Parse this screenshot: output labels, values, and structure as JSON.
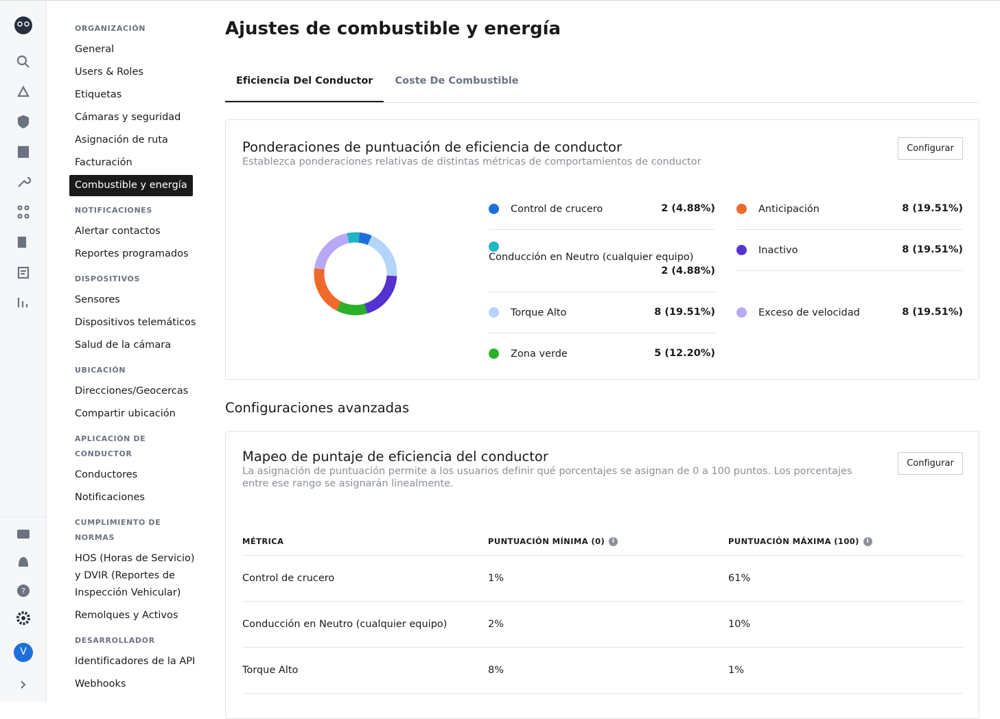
{
  "page": {
    "title": "Ajustes de combustible y energía",
    "user_initial": "V",
    "nav": {
      "sections": [
        {
          "title": "ORGANIZACIÓN",
          "items": [
            "General",
            "Users & Roles",
            "Etiquetas",
            "Cámaras y seguridad",
            "Asignación de ruta",
            "Facturación",
            "Combustible y energía"
          ]
        },
        {
          "title": "NOTIFICACIONES",
          "items": [
            "Alertar contactos",
            "Reportes programados"
          ]
        },
        {
          "title": "DISPOSITIVOS",
          "items": [
            "Sensores",
            "Dispositivos telemáticos",
            "Salud de la cámara"
          ]
        },
        {
          "title": "UBICACIÓN",
          "items": [
            "Direcciones/Geocercas",
            "Compartir ubicación"
          ]
        },
        {
          "title": "APLICACIÓN DE CONDUCTOR",
          "items": [
            "Conductores",
            "Notificaciones"
          ]
        },
        {
          "title": "CUMPLIMIENTO DE NORMAS",
          "items": [
            "HOS (Horas de Servicio) y DVIR (Reportes de Inspección Vehicular)",
            "Remolques y Activos"
          ]
        },
        {
          "title": "DESARROLLADOR",
          "items": [
            "Identificadores de la API",
            "Webhooks"
          ]
        }
      ]
    },
    "tabs": [
      "Eficiencia Del Conductor",
      "Coste De Combustible"
    ],
    "weights_card": {
      "title": "Ponderaciones de puntuación de eficiencia de conductor",
      "subtitle": "Establezca ponderaciones relativas de distintas métricas de comportamientos de conductor",
      "button": "Configurar"
    },
    "weights": {
      "type": "pie",
      "categories": [
        "Conducción en Neutro (cualquier equipo)",
        "Control de crucero",
        "Torque Alto",
        "Inactivo",
        "Zona verde",
        "Anticipación",
        "Exceso de velocidad"
      ],
      "values": [
        2,
        2,
        8,
        8,
        5,
        8,
        8
      ],
      "value_labels": [
        "2 (4.88%)",
        "2 (4.88%)",
        "8 (19.51%)",
        "8 (19.51%)",
        "5 (12.20%)",
        "8 (19.51%)",
        "8 (19.51%)"
      ],
      "colors": [
        "#1fb5c4",
        "#1e6fd9",
        "#b3d4fb",
        "#5533d1",
        "#2ab02a",
        "#f06a2a",
        "#b9a8f5"
      ]
    },
    "advanced_title": "Configuraciones avanzadas",
    "mapping_card": {
      "title": "Mapeo de puntaje de eficiencia del conductor",
      "subtitle": "La asignación de puntuación permite a los usuarios definir qué porcentajes se asignan de 0 a 100 puntos. Los porcentajes entre ese rango se asignarán linealmente.",
      "button": "Configurar"
    },
    "table": {
      "header": [
        "MÉTRICA",
        "PUNTUACIÓN MÍNIMA (0)",
        "PUNTUACIÓN MÁXIMA (100)"
      ],
      "rows": [
        [
          "Control de crucero",
          "1%",
          "61%"
        ],
        [
          "Conducción en Neutro (cualquier equipo)",
          "2%",
          "10%"
        ],
        [
          "Torque Alto",
          "8%",
          "1%"
        ]
      ]
    }
  }
}
